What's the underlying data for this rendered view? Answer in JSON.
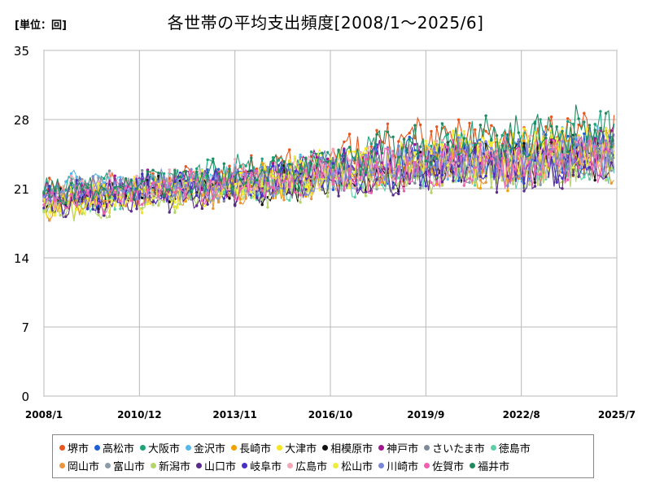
{
  "unit_label": "[単位：回]",
  "chart_data": {
    "type": "line",
    "title": "各世帯の平均支出頻度[2008/1～2025/6]",
    "xlabel": "",
    "ylabel": "",
    "ylim": [
      0,
      35
    ],
    "yticks": [
      0,
      7,
      14,
      21,
      28,
      35
    ],
    "xlim": [
      "2008/1",
      "2025/7"
    ],
    "xticks": [
      "2008/1",
      "2010/12",
      "2013/11",
      "2016/10",
      "2019/9",
      "2022/8",
      "2025/7"
    ],
    "grid": true,
    "legend_position": "bottom",
    "series": [
      {
        "name": "堺市",
        "color": "#E8561E",
        "values": [
          20.5,
          21.0,
          21.4,
          22.0,
          22.5,
          23.5,
          25.0,
          26.0,
          26.5,
          25.5,
          26.5,
          26.0
        ]
      },
      {
        "name": "高松市",
        "color": "#1F5FD6",
        "values": [
          20.0,
          20.6,
          21.0,
          21.5,
          21.8,
          22.5,
          23.0,
          23.8,
          24.2,
          24.0,
          24.5,
          24.8
        ]
      },
      {
        "name": "大阪市",
        "color": "#1BA37A",
        "values": [
          20.8,
          21.2,
          21.5,
          22.0,
          22.8,
          23.2,
          24.0,
          24.5,
          25.5,
          25.0,
          26.0,
          26.5
        ]
      },
      {
        "name": "金沢市",
        "color": "#5AB8E8",
        "values": [
          21.0,
          21.8,
          21.5,
          21.6,
          21.9,
          22.4,
          23.0,
          23.6,
          24.0,
          23.8,
          24.6,
          25.0
        ]
      },
      {
        "name": "長崎市",
        "color": "#F2A100",
        "values": [
          19.5,
          20.0,
          20.8,
          21.2,
          21.4,
          22.0,
          22.6,
          23.0,
          23.5,
          23.2,
          24.0,
          24.4
        ]
      },
      {
        "name": "大津市",
        "color": "#F7E51E",
        "values": [
          19.0,
          19.8,
          20.5,
          21.0,
          21.5,
          22.6,
          23.5,
          24.0,
          24.8,
          24.5,
          25.2,
          25.6
        ]
      },
      {
        "name": "相模原市",
        "color": "#111111",
        "values": [
          19.8,
          20.3,
          20.8,
          21.2,
          21.0,
          21.5,
          22.5,
          23.2,
          23.8,
          23.5,
          24.2,
          24.6
        ]
      },
      {
        "name": "神戸市",
        "color": "#A0188F",
        "values": [
          20.2,
          20.8,
          21.2,
          21.8,
          22.0,
          22.8,
          23.4,
          24.0,
          24.6,
          24.4,
          25.0,
          25.2
        ]
      },
      {
        "name": "さいたま市",
        "color": "#7E8A96",
        "values": [
          20.5,
          21.0,
          21.0,
          21.3,
          21.5,
          22.0,
          22.6,
          23.0,
          23.6,
          23.4,
          24.0,
          24.2
        ]
      },
      {
        "name": "徳島市",
        "color": "#5FD0A6",
        "values": [
          19.6,
          20.2,
          20.6,
          21.0,
          21.2,
          21.8,
          22.2,
          22.8,
          23.2,
          23.0,
          23.6,
          23.8
        ]
      },
      {
        "name": "岡山市",
        "color": "#E9963C",
        "values": [
          19.2,
          19.8,
          20.4,
          20.8,
          21.2,
          21.8,
          22.4,
          23.0,
          23.4,
          23.2,
          23.8,
          24.0
        ]
      },
      {
        "name": "富山市",
        "color": "#8C9BA8",
        "values": [
          20.0,
          20.6,
          21.0,
          21.4,
          21.6,
          22.2,
          22.8,
          23.4,
          23.8,
          23.6,
          24.2,
          24.4
        ]
      },
      {
        "name": "新潟市",
        "color": "#B5D46A",
        "values": [
          18.8,
          19.4,
          20.0,
          20.6,
          21.0,
          21.6,
          22.2,
          22.6,
          23.0,
          22.8,
          23.4,
          23.6
        ]
      },
      {
        "name": "山口市",
        "color": "#5B2C8C",
        "values": [
          19.0,
          19.6,
          20.2,
          20.6,
          21.0,
          21.4,
          22.0,
          22.6,
          23.0,
          22.8,
          23.2,
          23.6
        ]
      },
      {
        "name": "岐阜市",
        "color": "#4631C4",
        "values": [
          19.8,
          20.4,
          20.8,
          21.2,
          21.6,
          22.2,
          22.8,
          23.4,
          23.8,
          23.6,
          24.2,
          24.6
        ]
      },
      {
        "name": "広島市",
        "color": "#F2A7B6",
        "values": [
          20.4,
          21.0,
          21.4,
          21.8,
          22.2,
          22.8,
          23.2,
          23.8,
          24.2,
          24.0,
          24.6,
          24.8
        ]
      },
      {
        "name": "松山市",
        "color": "#EDED3A",
        "values": [
          19.4,
          20.0,
          20.6,
          21.0,
          21.4,
          22.4,
          23.2,
          23.8,
          24.6,
          24.2,
          25.0,
          25.4
        ]
      },
      {
        "name": "川崎市",
        "color": "#7A86D6",
        "values": [
          20.2,
          20.8,
          21.2,
          21.4,
          21.8,
          22.4,
          23.0,
          23.6,
          24.0,
          23.8,
          24.4,
          24.6
        ]
      },
      {
        "name": "佐賀市",
        "color": "#F060B0",
        "values": [
          19.6,
          20.2,
          20.6,
          21.0,
          21.4,
          22.0,
          22.6,
          23.0,
          23.6,
          23.4,
          24.0,
          24.2
        ]
      },
      {
        "name": "福井市",
        "color": "#1E8A5E",
        "values": [
          20.6,
          21.2,
          21.6,
          22.0,
          22.4,
          23.0,
          24.2,
          25.2,
          26.6,
          26.0,
          27.0,
          26.8
        ]
      }
    ]
  }
}
